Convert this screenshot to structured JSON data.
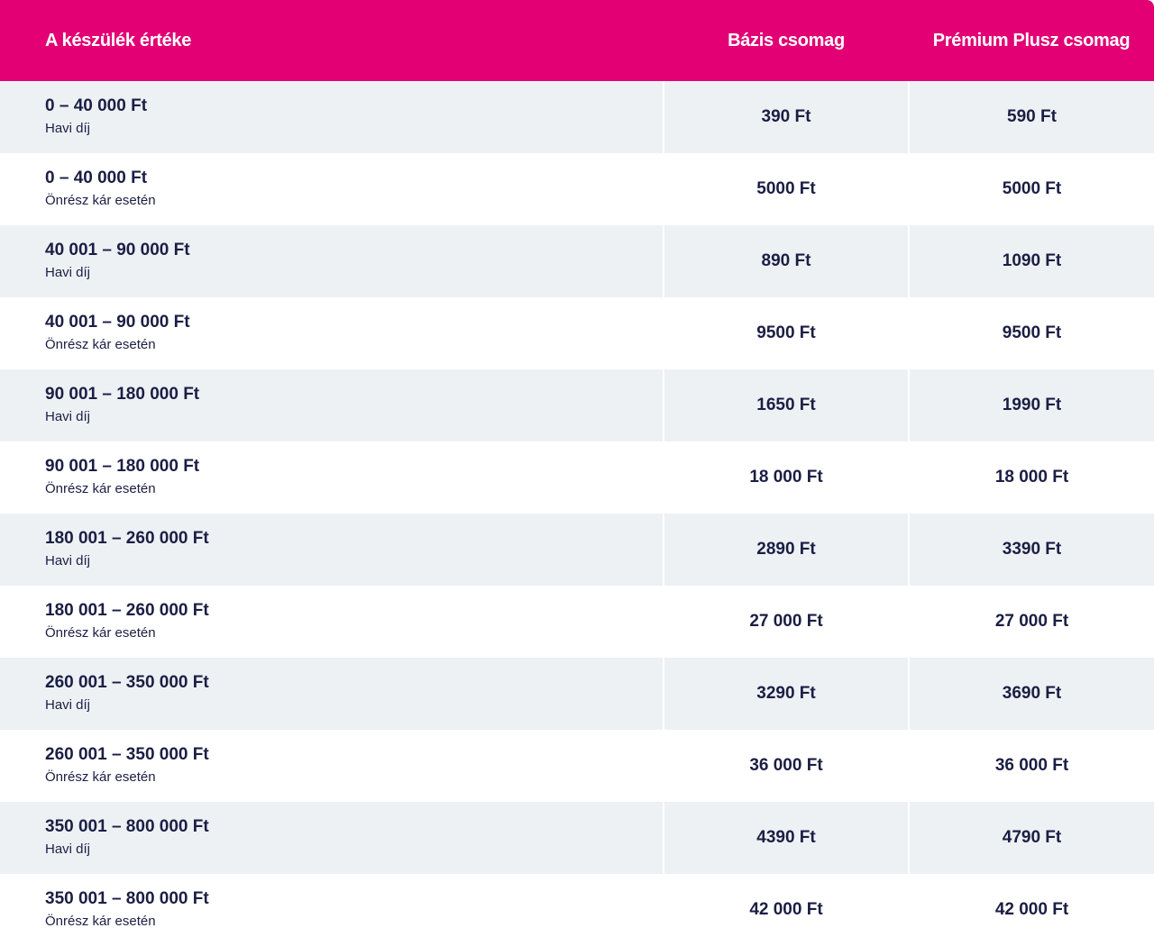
{
  "header": {
    "col1": "A készülék értéke",
    "col2": "Bázis csomag",
    "col3": "Prémium Plusz csomag"
  },
  "rows": [
    {
      "range": "0 – 40 000 Ft",
      "type": "Havi díj",
      "bazis": "390 Ft",
      "premium": "590 Ft"
    },
    {
      "range": "0 – 40 000 Ft",
      "type": "Önrész kár esetén",
      "bazis": "5000 Ft",
      "premium": "5000 Ft"
    },
    {
      "range": "40 001 – 90 000 Ft",
      "type": "Havi díj",
      "bazis": "890 Ft",
      "premium": "1090 Ft"
    },
    {
      "range": "40 001 – 90 000 Ft",
      "type": "Önrész kár esetén",
      "bazis": "9500 Ft",
      "premium": "9500 Ft"
    },
    {
      "range": "90 001 – 180 000 Ft",
      "type": "Havi díj",
      "bazis": "1650 Ft",
      "premium": "1990 Ft"
    },
    {
      "range": "90 001 – 180 000 Ft",
      "type": "Önrész kár esetén",
      "bazis": "18 000 Ft",
      "premium": "18 000 Ft"
    },
    {
      "range": "180 001 – 260 000 Ft",
      "type": "Havi díj",
      "bazis": "2890 Ft",
      "premium": "3390 Ft"
    },
    {
      "range": "180 001 – 260 000 Ft",
      "type": "Önrész kár esetén",
      "bazis": "27 000 Ft",
      "premium": "27 000 Ft"
    },
    {
      "range": "260 001 – 350 000 Ft",
      "type": "Havi díj",
      "bazis": "3290 Ft",
      "premium": "3690 Ft"
    },
    {
      "range": "260 001 – 350 000 Ft",
      "type": "Önrész kár esetén",
      "bazis": "36 000 Ft",
      "premium": "36 000 Ft"
    },
    {
      "range": "350 001 – 800 000 Ft",
      "type": "Havi díj",
      "bazis": "4390 Ft",
      "premium": "4790 Ft"
    },
    {
      "range": "350 001 – 800 000 Ft",
      "type": "Önrész kár esetén",
      "bazis": "42 000 Ft",
      "premium": "42 000 Ft"
    }
  ],
  "colors": {
    "header_bg": "#e20074",
    "row_shaded": "#edf1f4",
    "text": "#1b1e44"
  }
}
